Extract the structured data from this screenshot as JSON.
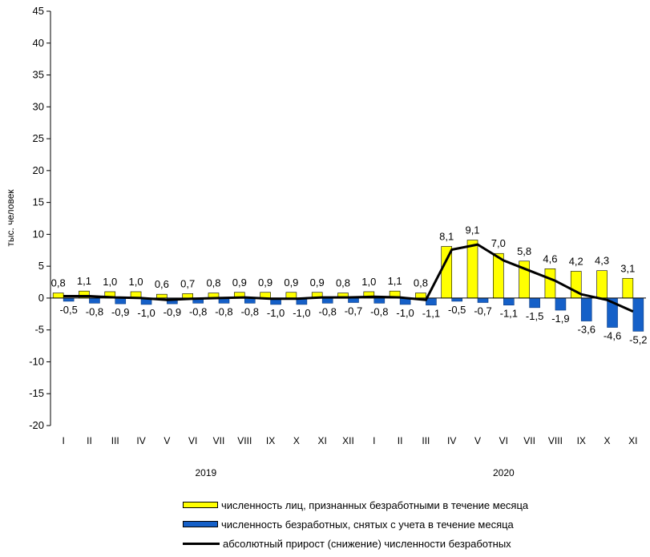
{
  "chart_data": {
    "type": "bar",
    "ylabel": "тыс. человек",
    "ylim": [
      -20,
      45
    ],
    "yticks": [
      45,
      40,
      35,
      30,
      25,
      20,
      15,
      10,
      5,
      0,
      -5,
      -10,
      -15,
      -20
    ],
    "categories": [
      "I",
      "II",
      "III",
      "IV",
      "V",
      "VI",
      "VII",
      "VIII",
      "IX",
      "X",
      "XI",
      "XII",
      "I",
      "II",
      "III",
      "IV",
      "V",
      "VI",
      "VII",
      "VIII",
      "IX",
      "X",
      "XI"
    ],
    "year_groups": [
      {
        "label": "2019",
        "count": 12
      },
      {
        "label": "2020",
        "count": 11
      }
    ],
    "series": [
      {
        "name": "численность лиц, признанных безработными в течение месяца",
        "kind": "bar",
        "color": "#ffff00",
        "values": [
          0.8,
          1.1,
          1.0,
          1.0,
          0.6,
          0.7,
          0.8,
          0.9,
          0.9,
          0.9,
          0.9,
          0.8,
          1.0,
          1.1,
          0.8,
          8.1,
          9.1,
          7.0,
          5.8,
          4.6,
          4.2,
          4.3,
          3.1
        ],
        "labels": [
          "0,8",
          "1,1",
          "1,0",
          "1,0",
          "0,6",
          "0,7",
          "0,8",
          "0,9",
          "0,9",
          "0,9",
          "0,9",
          "0,8",
          "1,0",
          "1,1",
          "0,8",
          "8,1",
          "9,1",
          "7,0",
          "5,8",
          "4,6",
          "4,2",
          "4,3",
          "3,1"
        ]
      },
      {
        "name": "численность безработных, снятых с учета в течение месяца",
        "kind": "bar",
        "color": "#1560c8",
        "values": [
          -0.5,
          -0.8,
          -0.9,
          -1.0,
          -0.9,
          -0.8,
          -0.8,
          -0.8,
          -1.0,
          -1.0,
          -0.8,
          -0.7,
          -0.8,
          -1.0,
          -1.1,
          -0.5,
          -0.7,
          -1.1,
          -1.5,
          -1.9,
          -3.6,
          -4.6,
          -5.2
        ],
        "labels": [
          "-0,5",
          "-0,8",
          "-0,9",
          "-1,0",
          "-0,9",
          "-0,8",
          "-0,8",
          "-0,8",
          "-1,0",
          "-1,0",
          "-0,8",
          "-0,7",
          "-0,8",
          "-1,0",
          "-1,1",
          "-0,5",
          "-0,7",
          "-1,1",
          "-1,5",
          "-1,9",
          "-3,6",
          "-4,6",
          "-5,2"
        ]
      },
      {
        "name": "абсолютный прирост (снижение) численности безработных",
        "kind": "line",
        "color": "#000000",
        "values": [
          0.3,
          0.3,
          0.1,
          0.0,
          -0.3,
          -0.1,
          0.0,
          0.1,
          -0.1,
          -0.1,
          0.1,
          0.1,
          0.2,
          0.1,
          -0.3,
          7.6,
          8.4,
          5.9,
          4.3,
          2.7,
          0.6,
          -0.3,
          -2.1
        ]
      }
    ]
  }
}
